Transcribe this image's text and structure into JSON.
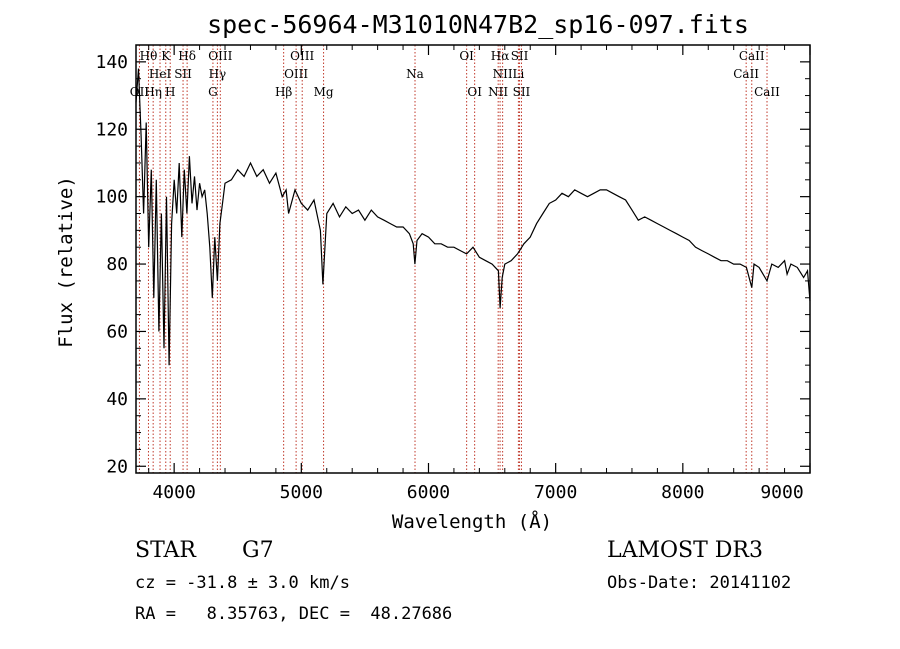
{
  "chart_data": {
    "type": "line",
    "title": "spec-56964-M31010N47B2_sp16-097.fits",
    "xlabel": "Wavelength (Å)",
    "ylabel": "Flux (relative)",
    "xlim": [
      3700,
      9000
    ],
    "ylim": [
      18,
      145
    ],
    "x_ticks": [
      4000,
      5000,
      6000,
      7000,
      8000,
      9000
    ],
    "y_ticks": [
      20,
      40,
      60,
      80,
      100,
      120,
      140
    ],
    "series": [
      {
        "name": "flux",
        "points": [
          [
            3700,
            128
          ],
          [
            3720,
            138
          ],
          [
            3740,
            118
          ],
          [
            3760,
            95
          ],
          [
            3780,
            122
          ],
          [
            3800,
            85
          ],
          [
            3820,
            108
          ],
          [
            3840,
            70
          ],
          [
            3860,
            105
          ],
          [
            3880,
            60
          ],
          [
            3900,
            95
          ],
          [
            3920,
            55
          ],
          [
            3940,
            100
          ],
          [
            3960,
            50
          ],
          [
            3980,
            92
          ],
          [
            4000,
            105
          ],
          [
            4020,
            95
          ],
          [
            4040,
            110
          ],
          [
            4060,
            88
          ],
          [
            4080,
            108
          ],
          [
            4100,
            95
          ],
          [
            4120,
            112
          ],
          [
            4140,
            98
          ],
          [
            4160,
            106
          ],
          [
            4180,
            96
          ],
          [
            4200,
            104
          ],
          [
            4220,
            100
          ],
          [
            4240,
            102
          ],
          [
            4260,
            95
          ],
          [
            4280,
            85
          ],
          [
            4300,
            70
          ],
          [
            4320,
            88
          ],
          [
            4340,
            75
          ],
          [
            4360,
            92
          ],
          [
            4380,
            98
          ],
          [
            4400,
            104
          ],
          [
            4450,
            105
          ],
          [
            4500,
            108
          ],
          [
            4550,
            106
          ],
          [
            4600,
            110
          ],
          [
            4650,
            106
          ],
          [
            4700,
            108
          ],
          [
            4750,
            104
          ],
          [
            4800,
            107
          ],
          [
            4850,
            100
          ],
          [
            4880,
            102
          ],
          [
            4900,
            95
          ],
          [
            4950,
            102
          ],
          [
            5000,
            98
          ],
          [
            5050,
            96
          ],
          [
            5100,
            99
          ],
          [
            5150,
            90
          ],
          [
            5170,
            74
          ],
          [
            5200,
            95
          ],
          [
            5250,
            98
          ],
          [
            5300,
            94
          ],
          [
            5350,
            97
          ],
          [
            5400,
            95
          ],
          [
            5450,
            96
          ],
          [
            5500,
            93
          ],
          [
            5550,
            96
          ],
          [
            5600,
            94
          ],
          [
            5650,
            93
          ],
          [
            5700,
            92
          ],
          [
            5750,
            91
          ],
          [
            5800,
            91
          ],
          [
            5850,
            89
          ],
          [
            5880,
            86
          ],
          [
            5893,
            80
          ],
          [
            5910,
            87
          ],
          [
            5950,
            89
          ],
          [
            6000,
            88
          ],
          [
            6050,
            86
          ],
          [
            6100,
            86
          ],
          [
            6150,
            85
          ],
          [
            6200,
            85
          ],
          [
            6250,
            84
          ],
          [
            6300,
            83
          ],
          [
            6350,
            85
          ],
          [
            6400,
            82
          ],
          [
            6450,
            81
          ],
          [
            6500,
            80
          ],
          [
            6550,
            78
          ],
          [
            6563,
            67
          ],
          [
            6580,
            76
          ],
          [
            6600,
            80
          ],
          [
            6650,
            81
          ],
          [
            6700,
            83
          ],
          [
            6750,
            86
          ],
          [
            6800,
            88
          ],
          [
            6850,
            92
          ],
          [
            6900,
            95
          ],
          [
            6950,
            98
          ],
          [
            7000,
            99
          ],
          [
            7050,
            101
          ],
          [
            7100,
            100
          ],
          [
            7150,
            102
          ],
          [
            7200,
            101
          ],
          [
            7250,
            100
          ],
          [
            7300,
            101
          ],
          [
            7350,
            102
          ],
          [
            7400,
            102
          ],
          [
            7450,
            101
          ],
          [
            7500,
            100
          ],
          [
            7550,
            99
          ],
          [
            7600,
            96
          ],
          [
            7650,
            93
          ],
          [
            7700,
            94
          ],
          [
            7750,
            93
          ],
          [
            7800,
            92
          ],
          [
            7850,
            91
          ],
          [
            7900,
            90
          ],
          [
            7950,
            89
          ],
          [
            8000,
            88
          ],
          [
            8050,
            87
          ],
          [
            8100,
            85
          ],
          [
            8150,
            84
          ],
          [
            8200,
            83
          ],
          [
            8250,
            82
          ],
          [
            8300,
            81
          ],
          [
            8350,
            81
          ],
          [
            8400,
            80
          ],
          [
            8450,
            80
          ],
          [
            8500,
            79
          ],
          [
            8542,
            73
          ],
          [
            8560,
            80
          ],
          [
            8600,
            79
          ],
          [
            8662,
            75
          ],
          [
            8700,
            80
          ],
          [
            8750,
            79
          ],
          [
            8800,
            81
          ],
          [
            8820,
            77
          ],
          [
            8850,
            80
          ],
          [
            8900,
            79
          ],
          [
            8950,
            76
          ],
          [
            8980,
            78
          ],
          [
            9000,
            69
          ]
        ]
      }
    ],
    "spectral_lines": [
      {
        "label": "OII",
        "wavelength": 3727,
        "row": 2
      },
      {
        "label": "Hθ",
        "wavelength": 3798,
        "row": 0
      },
      {
        "label": "Hη",
        "wavelength": 3835,
        "row": 2
      },
      {
        "label": "HeI",
        "wavelength": 3889,
        "row": 1
      },
      {
        "label": "K",
        "wavelength": 3934,
        "row": 0
      },
      {
        "label": "H",
        "wavelength": 3969,
        "row": 2
      },
      {
        "label": "SII",
        "wavelength": 4070,
        "row": 1
      },
      {
        "label": "Hδ",
        "wavelength": 4102,
        "row": 0
      },
      {
        "label": "G",
        "wavelength": 4305,
        "row": 2
      },
      {
        "label": "Hγ",
        "wavelength": 4340,
        "row": 1
      },
      {
        "label": "OIII",
        "wavelength": 4363,
        "row": 0
      },
      {
        "label": "Hβ",
        "wavelength": 4861,
        "row": 2
      },
      {
        "label": "OIII",
        "wavelength": 4959,
        "row": 1
      },
      {
        "label": "OIII",
        "wavelength": 5007,
        "row": 0
      },
      {
        "label": "Mg",
        "wavelength": 5175,
        "row": 2
      },
      {
        "label": "Na",
        "wavelength": 5894,
        "row": 1
      },
      {
        "label": "OI",
        "wavelength": 6300,
        "row": 0
      },
      {
        "label": "OI",
        "wavelength": 6363,
        "row": 2
      },
      {
        "label": "NII",
        "wavelength": 6548,
        "row": 2
      },
      {
        "label": "Hα",
        "wavelength": 6563,
        "row": 0
      },
      {
        "label": "NII",
        "wavelength": 6583,
        "row": 1
      },
      {
        "label": "Li",
        "wavelength": 6707,
        "row": 1
      },
      {
        "label": "SII",
        "wavelength": 6716,
        "row": 0
      },
      {
        "label": "SII",
        "wavelength": 6731,
        "row": 2
      },
      {
        "label": "CaII",
        "wavelength": 8498,
        "row": 1
      },
      {
        "label": "CaII",
        "wavelength": 8542,
        "row": 0
      },
      {
        "label": "CaII",
        "wavelength": 8662,
        "row": 2
      }
    ]
  },
  "info": {
    "object_class": "STAR",
    "subclass": "G7",
    "survey": "LAMOST DR3",
    "cz": "cz = -31.8 ± 3.0 km/s",
    "obs_date": "Obs-Date: 20141102",
    "coords": "RA =   8.35763, DEC =  48.27686"
  },
  "colors": {
    "line_marker": "#c0392b",
    "spectrum": "#000000",
    "axis": "#000000"
  }
}
